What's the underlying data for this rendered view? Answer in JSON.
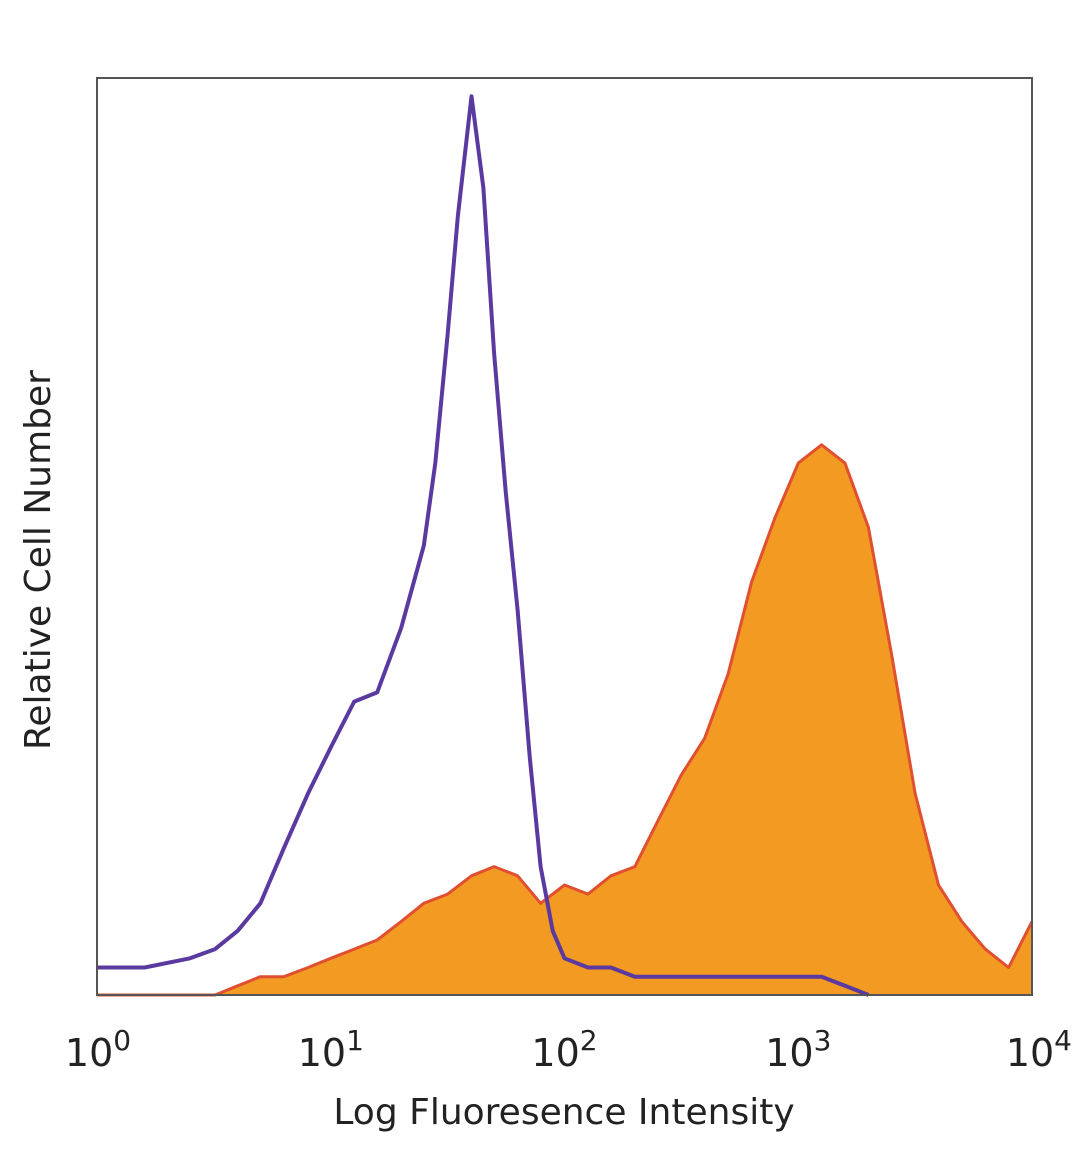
{
  "chart_data": {
    "type": "area",
    "title": "",
    "xlabel": "Log Fluoresence Intensity",
    "ylabel": "Relative Cell Number",
    "x_scale": "log",
    "xlim": [
      1,
      10000
    ],
    "ylim": [
      0,
      100
    ],
    "x_ticks": [
      {
        "value": 1,
        "base": "10",
        "exp": "0"
      },
      {
        "value": 10,
        "base": "10",
        "exp": "1"
      },
      {
        "value": 100,
        "base": "10",
        "exp": "2"
      },
      {
        "value": 1000,
        "base": "10",
        "exp": "3"
      },
      {
        "value": 10000,
        "base": "10",
        "exp": "4"
      }
    ],
    "grid": false,
    "legend": "none",
    "series": [
      {
        "style": "filled",
        "fill_color": "#f39a22",
        "line_color": "#e05030",
        "x": [
          1,
          3.2,
          4,
          5,
          6.3,
          8,
          10,
          12.6,
          15.8,
          20,
          25,
          31.6,
          40,
          50,
          63,
          79,
          100,
          126,
          158,
          200,
          251,
          316,
          398,
          501,
          631,
          794,
          1000,
          1259,
          1585,
          1995,
          2512,
          3162,
          3981,
          5012,
          6310,
          7943,
          10000
        ],
        "y": [
          0,
          0,
          1,
          2,
          2,
          3,
          4,
          5,
          6,
          8,
          10,
          11,
          13,
          14,
          13,
          10,
          12,
          11,
          13,
          14,
          19,
          24,
          28,
          35,
          45,
          52,
          58,
          60,
          58,
          51,
          37,
          22,
          12,
          8,
          5,
          3,
          8
        ]
      },
      {
        "style": "line",
        "line_color": "#5a3aa0",
        "x": [
          1,
          1.6,
          2.5,
          3.2,
          4,
          5,
          6.3,
          8,
          10,
          12.6,
          15.8,
          20,
          25,
          28,
          31.6,
          35,
          40,
          45,
          50,
          56,
          63,
          71,
          79,
          89,
          100,
          126,
          158,
          200,
          316,
          501,
          794,
          1000,
          1259,
          1585,
          2000
        ],
        "y": [
          3,
          3,
          4,
          5,
          7,
          10,
          16,
          22,
          27,
          32,
          33,
          40,
          49,
          58,
          72,
          85,
          98,
          88,
          70,
          55,
          42,
          26,
          14,
          7,
          4,
          3,
          3,
          2,
          2,
          2,
          2,
          2,
          2,
          1,
          0
        ]
      }
    ]
  }
}
